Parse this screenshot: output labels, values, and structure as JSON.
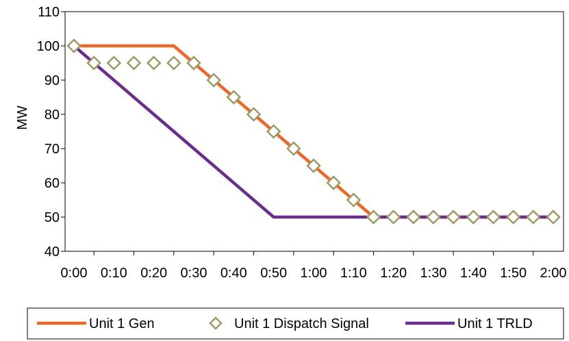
{
  "chart_data": {
    "type": "line",
    "title": "",
    "xlabel": "",
    "ylabel": "MW",
    "ylim": [
      40,
      110
    ],
    "yticks": [
      40,
      50,
      60,
      70,
      80,
      90,
      100,
      110
    ],
    "xlim": [
      "0:00",
      "2:00"
    ],
    "xticks": [
      "0:00",
      "0:10",
      "0:20",
      "0:30",
      "0:40",
      "0:50",
      "1:00",
      "1:10",
      "1:20",
      "1:30",
      "1:40",
      "1:50",
      "2:00"
    ],
    "grid": false,
    "legend_position": "bottom",
    "series": [
      {
        "name": "Unit 1 Gen",
        "style": "line",
        "color": "#f26522",
        "points": [
          [
            "0:00",
            100
          ],
          [
            "0:25",
            100
          ],
          [
            "1:15",
            50
          ],
          [
            "2:00",
            50
          ]
        ]
      },
      {
        "name": "Unit 1 Dispatch Signal",
        "style": "markers",
        "marker": "diamond-open",
        "color": "#9c9b62",
        "points": [
          [
            "0:00",
            100
          ],
          [
            "0:05",
            95
          ],
          [
            "0:10",
            95
          ],
          [
            "0:15",
            95
          ],
          [
            "0:20",
            95
          ],
          [
            "0:25",
            95
          ],
          [
            "0:30",
            95
          ],
          [
            "0:35",
            90
          ],
          [
            "0:40",
            85
          ],
          [
            "0:45",
            80
          ],
          [
            "0:50",
            75
          ],
          [
            "0:55",
            70
          ],
          [
            "1:00",
            65
          ],
          [
            "1:05",
            60
          ],
          [
            "1:10",
            55
          ],
          [
            "1:15",
            50
          ],
          [
            "1:20",
            50
          ],
          [
            "1:25",
            50
          ],
          [
            "1:30",
            50
          ],
          [
            "1:35",
            50
          ],
          [
            "1:40",
            50
          ],
          [
            "1:45",
            50
          ],
          [
            "1:50",
            50
          ],
          [
            "1:55",
            50
          ],
          [
            "2:00",
            50
          ]
        ]
      },
      {
        "name": "Unit 1 TRLD",
        "style": "line",
        "color": "#6b2c8f",
        "points": [
          [
            "0:00",
            100
          ],
          [
            "0:50",
            50
          ],
          [
            "2:00",
            50
          ]
        ]
      }
    ]
  }
}
